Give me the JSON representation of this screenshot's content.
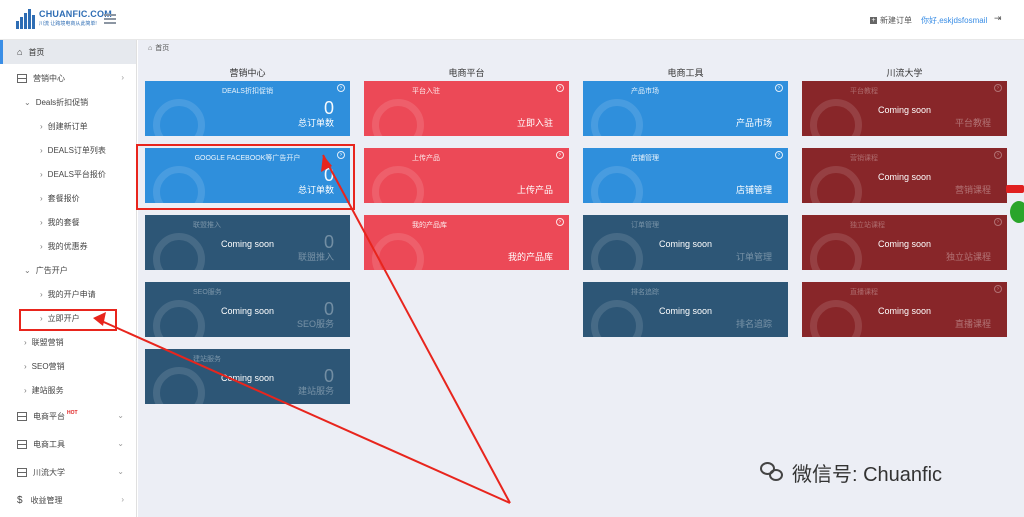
{
  "header": {
    "logo_text": "CHUANFIC.COM",
    "logo_sub": "川流 让跨境电商从此简单!",
    "new_order": "新建订单",
    "user": "你好,eskjdsfosmail"
  },
  "sidebar": {
    "home": "首页",
    "marketing": "营销中心",
    "deals": "Deals折扣促销",
    "deals_items": [
      "创建新订单",
      "DEALS订单列表",
      "DEALS平台报价",
      "套餐报价",
      "我的套餐",
      "我的优惠券"
    ],
    "ads": "广告开户",
    "ads_items": [
      "我的开户申请",
      "立即开户"
    ],
    "affiliate": "联盟营销",
    "seo": "SEO营销",
    "site": "建站服务",
    "ecom_platform": "电商平台",
    "hot_badge": "HOT",
    "ecom_tools": "电商工具",
    "university": "川流大学",
    "income": "收益管理"
  },
  "breadcrumb": "首页",
  "columns": [
    "营销中心",
    "电商平台",
    "电商工具",
    "川流大学"
  ],
  "cards": {
    "m1": {
      "title": "DEALS折扣促销",
      "num": "0",
      "label": "总订单数"
    },
    "m2": {
      "title": "GOOGLE FACEBOOK等广告开户",
      "num": "0",
      "label": "总订单数"
    },
    "m3": {
      "title": "联盟推入",
      "soon": "Coming soon",
      "num": "0",
      "label": "联盟推入"
    },
    "m4": {
      "title": "SEO服务",
      "soon": "Coming soon",
      "num": "0",
      "label": "SEO服务"
    },
    "m5": {
      "title": "建站服务",
      "soon": "Coming soon",
      "num": "0",
      "label": "建站服务"
    },
    "p1": {
      "title": "平台入驻",
      "label": "立即入驻"
    },
    "p2": {
      "title": "上传产品",
      "label": "上传产品"
    },
    "p3": {
      "title": "我的产品库",
      "label": "我的产品库"
    },
    "t1": {
      "title": "产品市场",
      "label": "产品市场"
    },
    "t2": {
      "title": "店铺管理",
      "label": "店铺管理"
    },
    "t3": {
      "title": "订单管理",
      "soon": "Coming soon",
      "label": "订单管理"
    },
    "t4": {
      "title": "排名追踪",
      "soon": "Coming soon",
      "label": "排名追踪"
    },
    "u1": {
      "title": "平台教程",
      "soon": "Coming soon",
      "label": "平台教程"
    },
    "u2": {
      "title": "营销课程",
      "soon": "Coming soon",
      "label": "营销课程"
    },
    "u3": {
      "title": "独立站课程",
      "soon": "Coming soon",
      "label": "独立站课程"
    },
    "u4": {
      "title": "直播课程",
      "soon": "Coming soon",
      "label": "直播课程"
    }
  },
  "watermark": "微信号: Chuanfic",
  "colors": {
    "blue": "#2f8fdc",
    "red": "#ec4957",
    "dark": "#2d5676",
    "maroon": "#882629",
    "annotation": "#e8251d"
  }
}
